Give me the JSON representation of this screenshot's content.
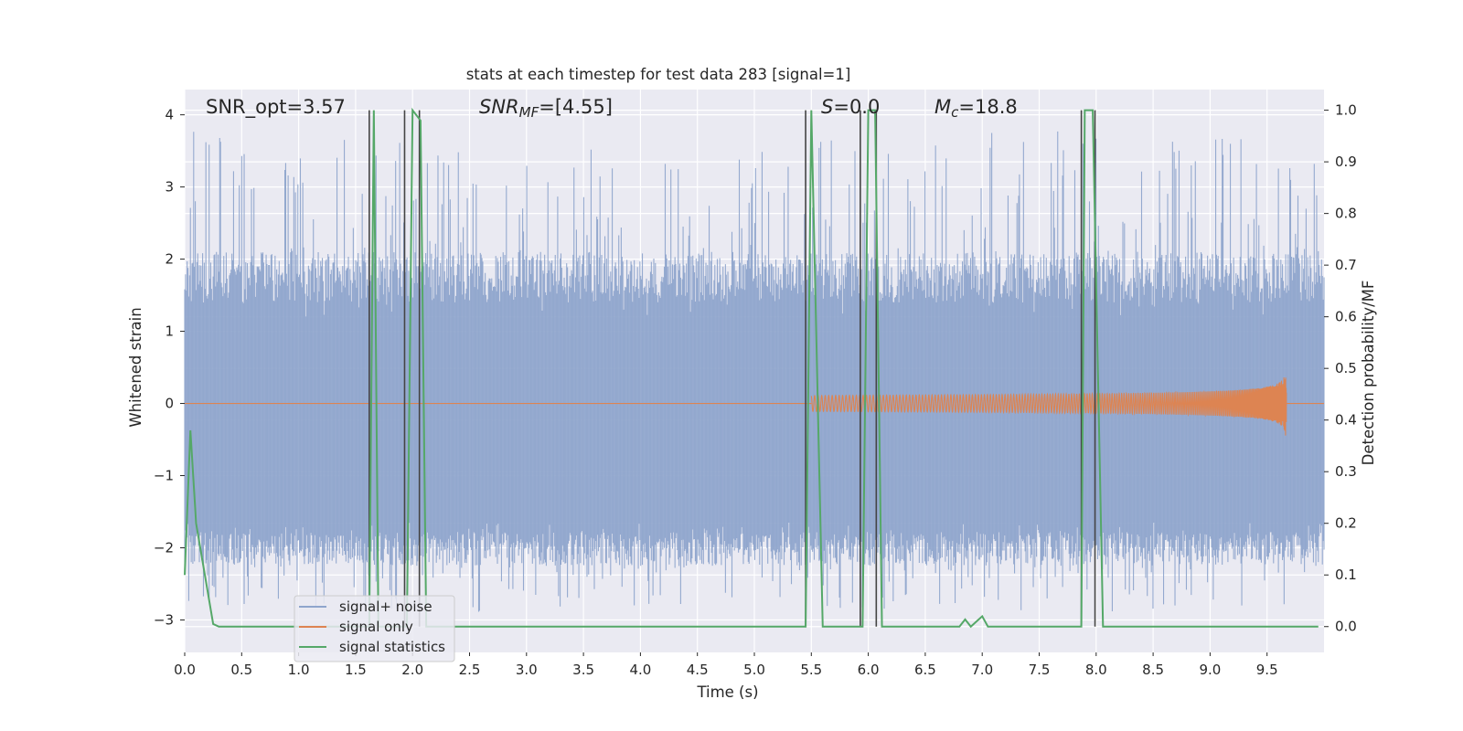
{
  "chart_data": {
    "type": "line",
    "title": "stats at each timestep for test data 283 [signal=1]",
    "xlabel": "Time (s)",
    "ylabel": "Whitened strain",
    "ylabel_right": "Detection probability/MF",
    "xlim": [
      0.0,
      10.0
    ],
    "ylim": [
      -3.45,
      4.35
    ],
    "ylim_right": [
      -0.05,
      1.04
    ],
    "x_ticks": [
      0.0,
      0.5,
      1.0,
      1.5,
      2.0,
      2.5,
      3.0,
      3.5,
      4.0,
      4.5,
      5.0,
      5.5,
      6.0,
      6.5,
      7.0,
      7.5,
      8.0,
      8.5,
      9.0,
      9.5
    ],
    "x_tick_labels": [
      "0.0",
      "0.5",
      "1.0",
      "1.5",
      "2.0",
      "2.5",
      "3.0",
      "3.5",
      "4.0",
      "4.5",
      "5.0",
      "5.5",
      "6.0",
      "6.5",
      "7.0",
      "7.5",
      "8.0",
      "8.5",
      "9.0",
      "9.5"
    ],
    "y_ticks": [
      -3,
      -2,
      -1,
      0,
      1,
      2,
      3,
      4
    ],
    "y_tick_labels": [
      "−3",
      "−2",
      "−1",
      "0",
      "1",
      "2",
      "3",
      "4"
    ],
    "y_right_ticks": [
      0.0,
      0.1,
      0.2,
      0.3,
      0.4,
      0.5,
      0.6,
      0.7,
      0.8,
      0.9,
      1.0
    ],
    "y_right_tick_labels": [
      "0.0",
      "0.1",
      "0.2",
      "0.3",
      "0.4",
      "0.5",
      "0.6",
      "0.7",
      "0.8",
      "0.9",
      "1.0"
    ],
    "grid": true,
    "legend_position": "lower-left",
    "annotations": {
      "snr_opt": "SNR_opt=3.57",
      "snr_mf_label": "SNR",
      "snr_mf_sub": "MF",
      "snr_mf_value": "=[4.55]",
      "s_label": "S",
      "s_value": "=0.0",
      "mc_label": "M",
      "mc_sub": "c",
      "mc_value": "=18.8"
    },
    "series": [
      {
        "name": "signal+ noise",
        "color": "#8fa5cc",
        "axis": "left",
        "kind": "noise",
        "x_range": [
          0.0,
          10.0
        ],
        "envelope": {
          "typical_max": 1.2,
          "typical_min": -1.65,
          "peak_max": 4.0,
          "peak_min": -3.0
        }
      },
      {
        "name": "signal only",
        "color": "#dd8452",
        "axis": "left",
        "kind": "chirp",
        "x_range": [
          5.5,
          9.67
        ],
        "amplitude_peak": 0.6
      },
      {
        "name": "signal statistics",
        "color": "#55a868",
        "axis": "right",
        "x": [
          0.0,
          0.05,
          0.1,
          0.25,
          0.3,
          1.62,
          1.66,
          1.7,
          1.74,
          1.95,
          2.0,
          2.07,
          2.12,
          5.45,
          5.5,
          5.6,
          5.93,
          5.95,
          6.0,
          6.06,
          6.12,
          6.8,
          6.85,
          6.9,
          7.0,
          7.05,
          7.87,
          7.9,
          7.97,
          8.06,
          9.95
        ],
        "values": [
          0.1,
          0.38,
          0.2,
          0.005,
          0.0,
          0.0,
          1.0,
          0.0,
          0.0,
          0.0,
          1.0,
          0.98,
          0.0,
          0.0,
          1.0,
          0.0,
          0.0,
          0.0,
          1.0,
          1.0,
          0.0,
          0.0,
          0.014,
          0.0,
          0.02,
          0.0,
          0.0,
          1.0,
          1.0,
          0.0,
          0.0
        ]
      }
    ],
    "threshold_lines": {
      "color": "#444444",
      "x": [
        1.62,
        1.93,
        2.06,
        5.45,
        5.93,
        6.07,
        7.87,
        7.99
      ]
    }
  }
}
